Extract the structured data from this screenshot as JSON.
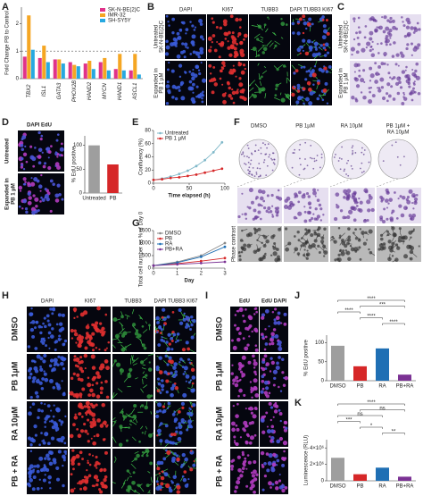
{
  "letters": [
    "A",
    "B",
    "C",
    "D",
    "E",
    "F",
    "G",
    "H",
    "I",
    "J",
    "K"
  ],
  "image_panels": {
    "B": {
      "columns": [
        "DAPI",
        "KI67",
        "TUBB3",
        "DAPI TUBB3 KI67"
      ],
      "rows": [
        [
          "Untreated",
          "SK-N-BE(2)C"
        ],
        [
          "Expanded in",
          "PB 1 µM"
        ]
      ]
    },
    "C": {
      "rows": [
        [
          "Untreated",
          "SK-N-BE(2)C"
        ],
        [
          "Expanded in",
          "PB 1 µM"
        ]
      ]
    },
    "D": {
      "label": "DAPI EdU",
      "rows": [
        [
          "Untreated"
        ],
        [
          "Expanded in",
          "PB 1 µM"
        ]
      ]
    },
    "F": {
      "columns": [
        [
          "DMSO"
        ],
        [
          "PB 1µM"
        ],
        [
          "RA 10µM"
        ],
        [
          "PB 1µM +",
          "RA 10µM"
        ]
      ],
      "row": "Phase contrast"
    },
    "H": {
      "columns": [
        "DAPI",
        "KI67",
        "TUBB3",
        "DAPI TUBB3 KI67"
      ],
      "rows": [
        "DMSO",
        "PB 1µM",
        "RA 10µM",
        "PB + RA"
      ]
    },
    "I": {
      "columns": [
        "EdU",
        "EdU DAPI"
      ],
      "rows": [
        "DMSO",
        "PB 1µM",
        "RA 10µM",
        "PB + RA"
      ]
    }
  },
  "chart_data": [
    {
      "type": "bar",
      "y_label": "Fold Change PB to Control",
      "categories": [
        "TBX2",
        "ISL1",
        "GATA3",
        "PHOX2B",
        "HAND2",
        "MYCN",
        "HAND1",
        "ASCL1"
      ],
      "series": [
        {
          "name": "SK-N-BE(2)C",
          "color": "#e0338a",
          "values": [
            0.8,
            0.75,
            0.7,
            0.6,
            0.55,
            0.6,
            0.35,
            0.3
          ]
        },
        {
          "name": "IMR-32",
          "color": "#f5a623",
          "values": [
            2.3,
            1.2,
            0.7,
            0.5,
            0.65,
            0.75,
            0.9,
            0.9
          ]
        },
        {
          "name": "SH-SY5Y",
          "color": "#27a9e1",
          "values": [
            1.05,
            0.6,
            0.55,
            0.45,
            0.35,
            0.3,
            0.3,
            0.15
          ]
        }
      ],
      "ylim": [
        0,
        2.6
      ],
      "yticks": [
        0,
        1,
        2
      ],
      "reference_line": 1,
      "legend": "upper right"
    },
    {
      "type": "bar",
      "y_label": "% EdU positive",
      "categories": [
        "Untreated",
        "PB"
      ],
      "values": [
        100,
        60
      ],
      "colors": [
        "#9e9e9e",
        "#d62728"
      ],
      "ylim": [
        0,
        120
      ],
      "yticks": [
        0,
        50,
        100
      ]
    },
    {
      "type": "line",
      "x_label": "Time elapsed (h)",
      "y_label": "Confluency (%)",
      "x": [
        0,
        12,
        24,
        36,
        48,
        60,
        72,
        84,
        96
      ],
      "series": [
        {
          "name": "Untreated",
          "color": "#7fb8c9",
          "values": [
            5,
            7,
            10,
            14,
            19,
            26,
            35,
            47,
            62
          ]
        },
        {
          "name": "PB 1 µM",
          "color": "#d62728",
          "values": [
            5,
            6,
            8,
            9,
            11,
            13,
            16,
            19,
            22
          ]
        }
      ],
      "xlim": [
        0,
        100
      ],
      "xticks": [
        0,
        50,
        100
      ],
      "ylim": [
        0,
        80
      ],
      "yticks": [
        0,
        20,
        40,
        60,
        80
      ],
      "legend": "upper left"
    },
    {
      "type": "line",
      "x_label": "Day",
      "y_label": "Total cell number as % of Day 0",
      "x": [
        0,
        1,
        2,
        3
      ],
      "series": [
        {
          "name": "DMSO",
          "color": "#888888",
          "values": [
            100,
            250,
            500,
            1000
          ]
        },
        {
          "name": "PB",
          "color": "#d62728",
          "values": [
            100,
            180,
            280,
            400
          ]
        },
        {
          "name": "RA",
          "color": "#1f6fb4",
          "values": [
            100,
            220,
            450,
            850
          ]
        },
        {
          "name": "PB+RA",
          "color": "#7b3294",
          "values": [
            100,
            150,
            200,
            250
          ]
        }
      ],
      "xlim": [
        0,
        3
      ],
      "xticks": [
        0,
        1,
        2,
        3
      ],
      "ylim": [
        0,
        1500
      ],
      "yticks": [
        0,
        500,
        1000,
        1500
      ],
      "legend": "upper left"
    },
    {
      "type": "bar",
      "y_label": "% EdU positive",
      "categories": [
        "DMSO",
        "PB",
        "RA",
        "PB+RA"
      ],
      "values": [
        92,
        38,
        85,
        16
      ],
      "colors": [
        "#9e9e9e",
        "#d62728",
        "#1f6fb4",
        "#7b3294"
      ],
      "ylim": [
        0,
        120
      ],
      "yticks": [
        0,
        50,
        100
      ],
      "annotations": [
        "****",
        "***",
        "****",
        "****",
        "****"
      ]
    },
    {
      "type": "bar",
      "y_label": "Luminescence (RLU)",
      "categories": [
        "DMSO",
        "PB",
        "RA",
        "PB+RA"
      ],
      "values": [
        2800000,
        800000,
        1600000,
        500000
      ],
      "colors": [
        "#9e9e9e",
        "#d62728",
        "#1f6fb4",
        "#7b3294"
      ],
      "ylim": [
        0,
        5000000
      ],
      "yticks": [
        0,
        {
          "value": 2000000,
          "label": "2×10⁶"
        },
        {
          "value": 4000000,
          "label": "4×10⁶"
        }
      ],
      "annotations": [
        "****",
        "ns",
        "ns",
        "***",
        "*",
        "**"
      ]
    }
  ]
}
